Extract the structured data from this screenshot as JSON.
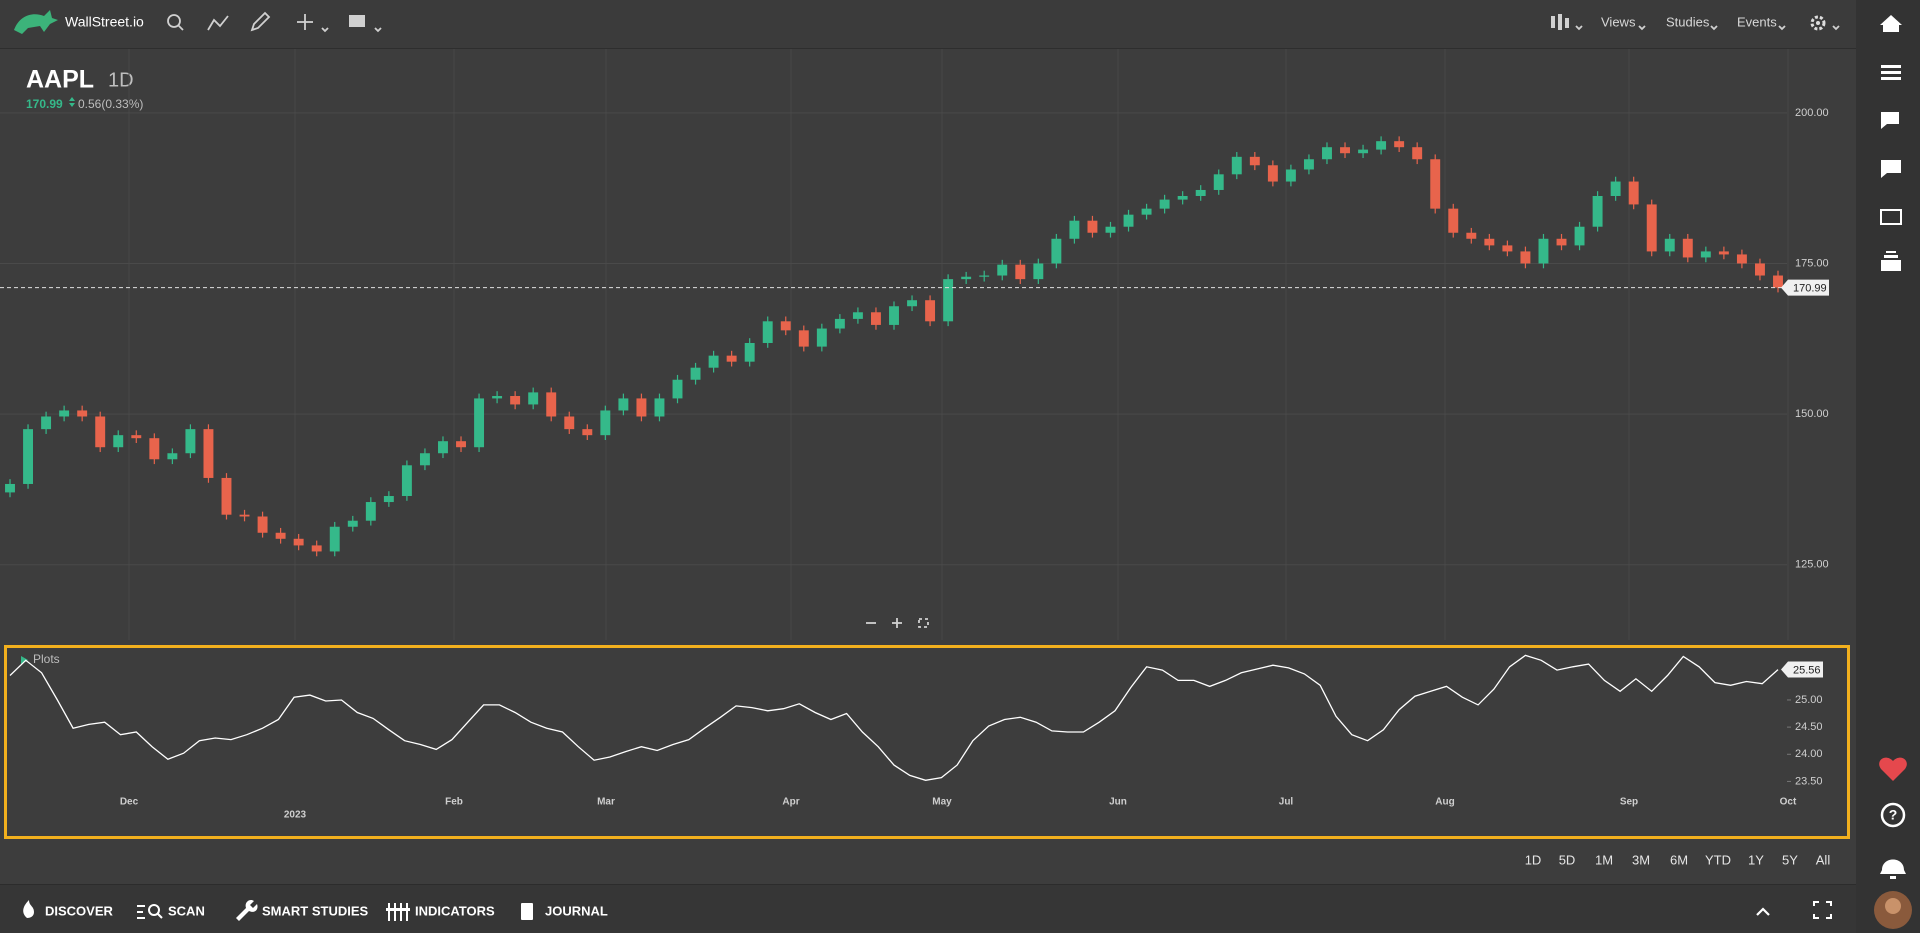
{
  "header": {
    "brand": "WallStreet.io",
    "menus": [
      "Views",
      "Studies",
      "Events"
    ]
  },
  "chart_data": [
    {
      "type": "candlestick",
      "symbol": "AAPL",
      "interval": "1D",
      "last_price": 170.99,
      "change_text": "0.56(0.33%)",
      "ylim": [
        112.5,
        210.6
      ],
      "yticks": [
        {
          "value": 125,
          "label": "125.00"
        },
        {
          "value": 150,
          "label": "150.00"
        },
        {
          "value": 175,
          "label": "175.00"
        },
        {
          "value": 200,
          "label": "200.00"
        }
      ],
      "grid": true,
      "up_color": "#35b98a",
      "down_color": "#e8644c",
      "x_labels": [
        "Dec",
        "2023",
        "Feb",
        "Mar",
        "Apr",
        "May",
        "Jun",
        "Jul",
        "Aug",
        "Sep",
        "Oct"
      ],
      "open": [
        137.0,
        138.4,
        147.5,
        149.6,
        150.6,
        149.6,
        144.5,
        146.5,
        146.0,
        142.5,
        143.5,
        147.5,
        139.4,
        133.3,
        133.0,
        130.3,
        129.3,
        128.2,
        127.2,
        131.3,
        132.3,
        135.4,
        136.4,
        141.5,
        143.5,
        145.5,
        144.5,
        152.6,
        153.0,
        151.6,
        153.6,
        149.6,
        147.5,
        146.5,
        150.6,
        152.6,
        149.6,
        152.6,
        155.7,
        157.7,
        159.7,
        158.7,
        161.8,
        165.4,
        163.9,
        161.2,
        164.2,
        165.8,
        166.9,
        164.8,
        167.9,
        168.9,
        165.4,
        172.4,
        172.8,
        173.0,
        174.8,
        172.4,
        175.0,
        179.1,
        182.1,
        180.1,
        181.1,
        183.1,
        184.1,
        185.6,
        186.2,
        187.2,
        189.8,
        192.7,
        191.3,
        188.6,
        190.6,
        192.3,
        194.3,
        193.3,
        193.9,
        195.3,
        194.3,
        192.3,
        184.1,
        180.1,
        179.1,
        178.0,
        177.0,
        175.0,
        179.1,
        178.0,
        181.1,
        186.2,
        188.6,
        184.8,
        177.0,
        179.1,
        176.0,
        177.0,
        176.5,
        175.0,
        173.0
      ],
      "high": [
        139.2,
        148.3,
        150.4,
        151.4,
        151.4,
        150.4,
        147.3,
        147.3,
        146.8,
        144.3,
        148.3,
        148.3,
        140.2,
        134.1,
        133.8,
        131.1,
        130.1,
        129.0,
        132.1,
        133.1,
        136.2,
        137.2,
        142.3,
        144.3,
        146.3,
        146.3,
        153.4,
        153.8,
        153.8,
        154.4,
        154.4,
        150.4,
        148.3,
        151.4,
        153.4,
        153.4,
        153.4,
        156.5,
        158.5,
        160.5,
        160.5,
        162.6,
        166.2,
        166.2,
        164.7,
        165.0,
        166.6,
        167.7,
        167.7,
        168.7,
        169.7,
        169.7,
        173.2,
        173.6,
        173.8,
        175.6,
        175.6,
        175.8,
        179.9,
        182.9,
        182.9,
        181.9,
        183.9,
        184.9,
        186.4,
        187.0,
        188.0,
        190.6,
        193.5,
        193.5,
        192.1,
        191.4,
        193.1,
        195.1,
        195.1,
        194.7,
        196.1,
        196.1,
        195.1,
        193.1,
        184.9,
        180.9,
        179.9,
        178.8,
        177.8,
        179.9,
        179.9,
        181.9,
        187.0,
        189.4,
        189.4,
        185.6,
        179.9,
        179.9,
        177.8,
        177.8,
        177.3,
        175.8,
        173.8
      ],
      "low": [
        136.2,
        137.6,
        146.7,
        148.8,
        148.8,
        143.7,
        143.7,
        145.2,
        141.7,
        141.7,
        142.7,
        138.6,
        132.5,
        132.2,
        129.5,
        128.5,
        127.4,
        126.4,
        126.4,
        130.5,
        131.5,
        134.6,
        135.6,
        140.7,
        142.7,
        143.7,
        143.7,
        151.8,
        150.8,
        150.8,
        148.8,
        146.7,
        145.7,
        145.7,
        149.8,
        148.8,
        148.8,
        151.8,
        154.9,
        156.9,
        157.9,
        157.9,
        161.0,
        163.1,
        160.4,
        160.4,
        163.4,
        165.0,
        164.0,
        164.0,
        167.1,
        164.6,
        164.6,
        171.6,
        172.0,
        172.2,
        171.6,
        171.6,
        174.2,
        178.3,
        179.3,
        179.3,
        180.3,
        182.3,
        183.3,
        184.8,
        185.4,
        186.4,
        189.0,
        190.5,
        187.8,
        187.8,
        189.8,
        191.5,
        192.5,
        192.5,
        193.1,
        193.5,
        191.5,
        183.3,
        179.3,
        178.3,
        177.2,
        176.2,
        174.2,
        174.2,
        177.2,
        177.2,
        180.3,
        185.4,
        184.0,
        176.2,
        176.2,
        175.2,
        175.2,
        175.7,
        174.2,
        172.2,
        170.2
      ],
      "close": [
        138.4,
        147.5,
        149.6,
        150.6,
        149.6,
        144.5,
        146.5,
        146.0,
        142.5,
        143.5,
        147.5,
        139.4,
        133.3,
        133.0,
        130.3,
        129.3,
        128.2,
        127.2,
        131.3,
        132.3,
        135.4,
        136.4,
        141.5,
        143.5,
        145.5,
        144.5,
        152.6,
        153.0,
        151.6,
        153.6,
        149.6,
        147.5,
        146.5,
        150.6,
        152.6,
        149.6,
        152.6,
        155.7,
        157.7,
        159.7,
        158.7,
        161.8,
        165.4,
        163.9,
        161.2,
        164.2,
        165.8,
        166.9,
        164.8,
        167.9,
        168.9,
        165.4,
        172.4,
        172.8,
        173.0,
        174.8,
        172.4,
        175.0,
        179.1,
        182.1,
        180.1,
        181.1,
        183.1,
        184.1,
        185.6,
        186.2,
        187.2,
        189.8,
        192.7,
        191.3,
        188.6,
        190.6,
        192.3,
        194.3,
        193.3,
        193.9,
        195.3,
        194.3,
        192.3,
        184.1,
        180.1,
        179.1,
        178.0,
        177.0,
        175.0,
        179.1,
        178.0,
        181.1,
        186.2,
        188.6,
        184.8,
        177.0,
        179.1,
        176.0,
        177.0,
        176.5,
        175.0,
        173.0,
        170.99
      ]
    },
    {
      "type": "line",
      "name": "Plots",
      "color": "#ffffff",
      "ylim": [
        23.25,
        25.92
      ],
      "yticks": [
        {
          "value": 23.5,
          "label": "23.50"
        },
        {
          "value": 24,
          "label": "24.00"
        },
        {
          "value": 24.5,
          "label": "24.50"
        },
        {
          "value": 25,
          "label": "25.00"
        }
      ],
      "values": [
        25.45,
        25.73,
        25.5,
        25.0,
        24.48,
        24.55,
        24.59,
        24.36,
        24.41,
        24.14,
        23.91,
        24.02,
        24.25,
        24.3,
        24.27,
        24.36,
        24.48,
        24.64,
        25.05,
        25.09,
        24.98,
        25.0,
        24.77,
        24.66,
        24.45,
        24.25,
        24.18,
        24.09,
        24.27,
        24.59,
        24.91,
        24.91,
        24.77,
        24.59,
        24.48,
        24.41,
        24.14,
        23.89,
        23.95,
        24.05,
        24.14,
        24.07,
        24.18,
        24.27,
        24.48,
        24.68,
        24.89,
        24.86,
        24.8,
        24.84,
        24.93,
        24.77,
        24.64,
        24.75,
        24.41,
        24.14,
        23.8,
        23.61,
        23.52,
        23.57,
        23.8,
        24.25,
        24.52,
        24.64,
        24.68,
        24.59,
        24.43,
        24.41,
        24.41,
        24.59,
        24.8,
        25.23,
        25.61,
        25.55,
        25.36,
        25.36,
        25.25,
        25.36,
        25.5,
        25.57,
        25.64,
        25.59,
        25.48,
        25.27,
        24.7,
        24.36,
        24.25,
        24.45,
        24.82,
        25.07,
        25.16,
        25.25,
        25.05,
        24.91,
        25.2,
        25.61,
        25.82,
        25.73,
        25.55,
        25.61,
        25.66,
        25.36,
        25.16,
        25.39,
        25.16,
        25.45,
        25.8,
        25.61,
        25.32,
        25.27,
        25.34,
        25.3,
        25.56
      ]
    }
  ],
  "range_buttons": [
    "1D",
    "5D",
    "1M",
    "3M",
    "6M",
    "YTD",
    "1Y",
    "5Y",
    "All"
  ],
  "footer_nav": [
    "DISCOVER",
    "SCAN",
    "SMART STUDIES",
    "INDICATORS",
    "JOURNAL"
  ]
}
